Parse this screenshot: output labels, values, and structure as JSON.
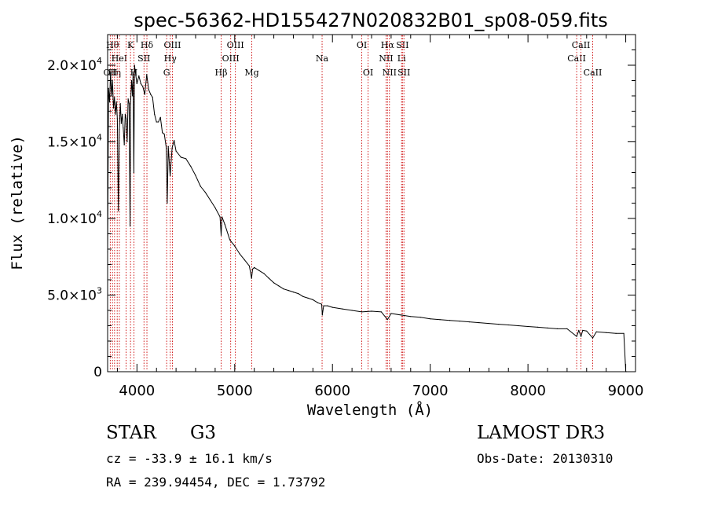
{
  "chart_data": {
    "type": "line",
    "title": "spec-56362-HD155427N020832B01_sp08-059.fits",
    "xlabel": "Wavelength (Å)",
    "ylabel": "Flux (relative)",
    "xlim": [
      3700,
      9100
    ],
    "ylim": [
      0,
      22000
    ],
    "x_ticks": [
      4000,
      5000,
      6000,
      7000,
      8000,
      9000
    ],
    "x_tick_labels": [
      "4000",
      "5000",
      "6000",
      "7000",
      "8000",
      "9000"
    ],
    "y_ticks": [
      0,
      5000,
      10000,
      15000,
      20000
    ],
    "y_tick_labels": [
      {
        "mantissa": "0",
        "exp": ""
      },
      {
        "mantissa": "5.0×10",
        "exp": "3"
      },
      {
        "mantissa": "1.0×10",
        "exp": "4"
      },
      {
        "mantissa": "1.5×10",
        "exp": "4"
      },
      {
        "mantissa": "2.0×10",
        "exp": "4"
      }
    ],
    "grid": false,
    "series": [
      {
        "name": "spectrum",
        "x": [
          3700,
          3710,
          3720,
          3730,
          3740,
          3750,
          3760,
          3770,
          3780,
          3790,
          3800,
          3810,
          3820,
          3830,
          3840,
          3850,
          3860,
          3870,
          3880,
          3890,
          3900,
          3910,
          3920,
          3930,
          3935,
          3945,
          3955,
          3960,
          3968,
          3975,
          3985,
          4000,
          4020,
          4040,
          4060,
          4080,
          4100,
          4120,
          4140,
          4160,
          4180,
          4200,
          4220,
          4240,
          4260,
          4280,
          4300,
          4310,
          4320,
          4340,
          4360,
          4380,
          4400,
          4450,
          4500,
          4550,
          4600,
          4650,
          4700,
          4750,
          4800,
          4850,
          4861,
          4870,
          4900,
          4950,
          5000,
          5050,
          5100,
          5150,
          5172,
          5183,
          5200,
          5250,
          5300,
          5350,
          5400,
          5450,
          5500,
          5550,
          5600,
          5650,
          5700,
          5750,
          5800,
          5850,
          5890,
          5896,
          5910,
          5950,
          6000,
          6100,
          6200,
          6300,
          6400,
          6500,
          6563,
          6600,
          6700,
          6800,
          6900,
          7000,
          7100,
          7200,
          7300,
          7400,
          7500,
          7600,
          7700,
          7800,
          7900,
          8000,
          8100,
          8200,
          8300,
          8400,
          8498,
          8520,
          8542,
          8560,
          8600,
          8662,
          8700,
          8800,
          8900,
          8980,
          9000,
          9010
        ],
        "values": [
          7800,
          18500,
          17600,
          19500,
          18000,
          19000,
          17200,
          17900,
          16800,
          17600,
          16500,
          10500,
          15800,
          17500,
          16200,
          16800,
          15900,
          14800,
          16800,
          16500,
          15000,
          17800,
          17500,
          9500,
          17500,
          19000,
          18000,
          19500,
          13000,
          20000,
          19500,
          18800,
          19300,
          18800,
          18600,
          18100,
          19400,
          18400,
          18100,
          17900,
          16800,
          16300,
          16300,
          16600,
          15600,
          15500,
          14600,
          11000,
          14700,
          12800,
          14600,
          15100,
          14400,
          14000,
          13900,
          13400,
          12800,
          12100,
          11700,
          11200,
          10700,
          10100,
          8900,
          10100,
          9600,
          8600,
          8200,
          7700,
          7300,
          6900,
          6100,
          6700,
          6800,
          6600,
          6400,
          6100,
          5800,
          5600,
          5400,
          5300,
          5200,
          5100,
          4900,
          4800,
          4700,
          4500,
          4400,
          3700,
          4300,
          4300,
          4200,
          4100,
          4000,
          3900,
          3950,
          3900,
          3400,
          3800,
          3700,
          3600,
          3550,
          3450,
          3400,
          3350,
          3300,
          3250,
          3200,
          3150,
          3100,
          3050,
          3000,
          2950,
          2900,
          2850,
          2800,
          2800,
          2300,
          2700,
          2300,
          2700,
          2650,
          2200,
          2600,
          2550,
          2500,
          2500,
          0,
          0
        ]
      }
    ],
    "lines": [
      {
        "x": 3727,
        "label": "OII",
        "row": 2
      },
      {
        "x": 3750,
        "label": "Hθ",
        "row": 0
      },
      {
        "x": 3771,
        "label": "Hη",
        "row": 2
      },
      {
        "x": 3798,
        "label": "",
        "row": 0
      },
      {
        "x": 3820,
        "label": "HeI",
        "row": 1
      },
      {
        "x": 3889,
        "label": "",
        "row": 0
      },
      {
        "x": 3934,
        "label": "K",
        "row": 0
      },
      {
        "x": 3969,
        "label": "H",
        "row": 2
      },
      {
        "x": 4072,
        "label": "SII",
        "row": 1
      },
      {
        "x": 4102,
        "label": "Hδ",
        "row": 0
      },
      {
        "x": 4304,
        "label": "G",
        "row": 2
      },
      {
        "x": 4341,
        "label": "Hγ",
        "row": 1
      },
      {
        "x": 4363,
        "label": "OIII",
        "row": 0
      },
      {
        "x": 4861,
        "label": "Hβ",
        "row": 2
      },
      {
        "x": 4959,
        "label": "OIII",
        "row": 1
      },
      {
        "x": 5007,
        "label": "OIII",
        "row": 0
      },
      {
        "x": 5175,
        "label": "Mg",
        "row": 2
      },
      {
        "x": 5894,
        "label": "Na",
        "row": 1
      },
      {
        "x": 6300,
        "label": "OI",
        "row": 0
      },
      {
        "x": 6364,
        "label": "OI",
        "row": 2
      },
      {
        "x": 6548,
        "label": "NII",
        "row": 1
      },
      {
        "x": 6563,
        "label": "Hα",
        "row": 0
      },
      {
        "x": 6583,
        "label": "NII",
        "row": 2
      },
      {
        "x": 6707,
        "label": "Li",
        "row": 1
      },
      {
        "x": 6716,
        "label": "SII",
        "row": 0
      },
      {
        "x": 6731,
        "label": "SII",
        "row": 2
      },
      {
        "x": 8498,
        "label": "CaII",
        "row": 1
      },
      {
        "x": 8542,
        "label": "CaII",
        "row": 0
      },
      {
        "x": 8662,
        "label": "CaII",
        "row": 2
      }
    ],
    "colors": {
      "axis": "#000000",
      "spectrum": "#000000",
      "marker": "#cc0000"
    }
  },
  "info": {
    "object_class": "STAR",
    "subclass": "G3",
    "survey": "LAMOST DR3",
    "redshift": "cz = -33.9 ± 16.1 km/s",
    "obs_date": "Obs-Date: 20130310",
    "coords": "RA = 239.94454, DEC =    1.73792"
  }
}
